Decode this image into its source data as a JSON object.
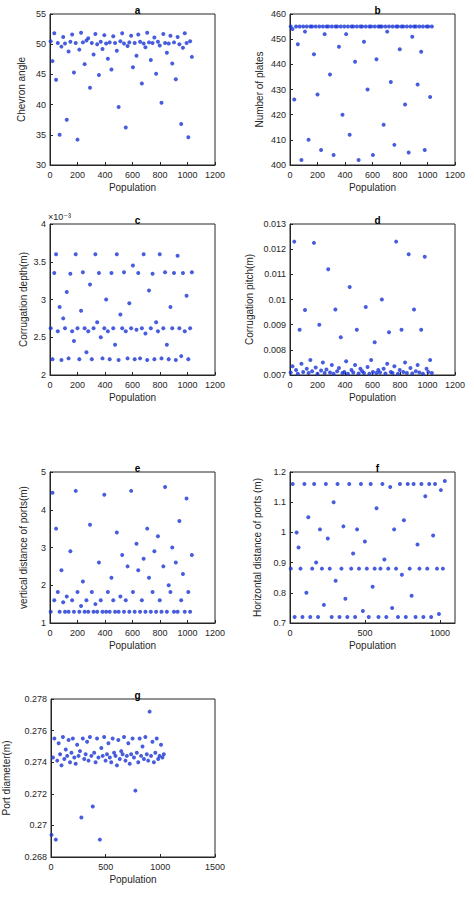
{
  "chart_data": [
    {
      "type": "scatter",
      "title": "a",
      "x_label": "Population",
      "y_label": "Chevron angle",
      "color": "#1a35d6",
      "marker": "dot",
      "grid": false,
      "xlim": [
        0,
        1200
      ],
      "xticks": [
        0,
        200,
        400,
        600,
        800,
        1000,
        1200
      ],
      "ylim": [
        30,
        55
      ],
      "yticks": [
        30,
        35,
        40,
        45,
        50,
        55
      ],
      "x": [
        5,
        18,
        31,
        44,
        57,
        70,
        83,
        96,
        109,
        122,
        135,
        148,
        161,
        174,
        187,
        200,
        213,
        226,
        239,
        252,
        265,
        278,
        291,
        304,
        317,
        330,
        343,
        356,
        369,
        382,
        395,
        408,
        421,
        434,
        447,
        460,
        473,
        486,
        499,
        512,
        525,
        538,
        551,
        564,
        577,
        590,
        603,
        616,
        629,
        642,
        655,
        668,
        681,
        694,
        707,
        720,
        733,
        746,
        759,
        772,
        785,
        798,
        811,
        824,
        837,
        850,
        863,
        876,
        889,
        902,
        915,
        928,
        941,
        954,
        967,
        980,
        993,
        1006,
        1019,
        1032
      ],
      "values": [
        50.5,
        47.2,
        51.8,
        44.1,
        50.2,
        35.0,
        49.6,
        51.2,
        50.1,
        37.5,
        48.8,
        50.4,
        51.6,
        45.3,
        50.2,
        34.2,
        49.1,
        51.9,
        50.3,
        46.7,
        50.6,
        51.0,
        42.8,
        50.2,
        48.3,
        51.7,
        50.0,
        44.9,
        50.4,
        49.2,
        51.5,
        50.1,
        47.6,
        50.3,
        45.8,
        51.3,
        50.2,
        48.9,
        39.6,
        50.5,
        51.8,
        50.1,
        36.2,
        49.7,
        50.3,
        51.4,
        46.2,
        50.2,
        48.1,
        51.6,
        50.4,
        43.5,
        50.1,
        49.5,
        51.9,
        50.3,
        47.4,
        50.2,
        51.1,
        45.1,
        50.4,
        49.8,
        40.3,
        51.7,
        50.2,
        48.6,
        50.1,
        51.4,
        46.8,
        50.3,
        44.2,
        51.2,
        50.0,
        36.8,
        49.4,
        51.8,
        50.2,
        34.6,
        50.5,
        47.9
      ]
    },
    {
      "type": "scatter",
      "title": "b",
      "x_label": "Population",
      "y_label": "Number of plates",
      "color": "#1a35d6",
      "marker": "dot",
      "grid": false,
      "xlim": [
        0,
        1200
      ],
      "xticks": [
        0,
        200,
        400,
        600,
        800,
        1000,
        1200
      ],
      "ylim": [
        400,
        460
      ],
      "yticks": [
        400,
        410,
        420,
        430,
        440,
        450,
        460
      ],
      "x": [
        5,
        18,
        31,
        44,
        57,
        70,
        83,
        96,
        109,
        122,
        135,
        148,
        161,
        174,
        187,
        200,
        213,
        226,
        239,
        252,
        265,
        278,
        291,
        304,
        317,
        330,
        343,
        356,
        369,
        382,
        395,
        408,
        421,
        434,
        447,
        460,
        473,
        486,
        499,
        512,
        525,
        538,
        551,
        564,
        577,
        590,
        603,
        616,
        629,
        642,
        655,
        668,
        681,
        694,
        707,
        720,
        733,
        746,
        759,
        772,
        785,
        798,
        811,
        824,
        837,
        850,
        863,
        876,
        889,
        902,
        915,
        928,
        941,
        954,
        967,
        980,
        993,
        1006,
        1019,
        1032
      ],
      "values": [
        455,
        454,
        426,
        455,
        448,
        455,
        402,
        455,
        453,
        455,
        410,
        455,
        455,
        444,
        455,
        428,
        455,
        406,
        455,
        452,
        455,
        455,
        436,
        455,
        404,
        455,
        455,
        447,
        455,
        420,
        455,
        452,
        455,
        412,
        455,
        455,
        441,
        455,
        402,
        455,
        455,
        449,
        455,
        430,
        455,
        455,
        404,
        455,
        442,
        455,
        455,
        455,
        416,
        455,
        453,
        455,
        433,
        455,
        408,
        455,
        455,
        446,
        455,
        455,
        424,
        455,
        405,
        455,
        451,
        455,
        455,
        432,
        455,
        445,
        455,
        406,
        455,
        455,
        427,
        455
      ]
    },
    {
      "type": "scatter",
      "title": "c",
      "x_label": "Population",
      "y_label": "Corrugation depth(m)",
      "annotation": "×10⁻³",
      "color": "#1a35d6",
      "marker": "dot",
      "grid": false,
      "xlim": [
        0,
        1200
      ],
      "xticks": [
        0,
        200,
        400,
        600,
        800,
        1000,
        1200
      ],
      "ylim": [
        0.002,
        0.004
      ],
      "yticks": [
        {
          "value": 0.002,
          "label": "2"
        },
        {
          "value": 0.0025,
          "label": "2.5"
        },
        {
          "value": 0.003,
          "label": "3"
        },
        {
          "value": 0.0035,
          "label": "3.5"
        },
        {
          "value": 0.004,
          "label": "4"
        }
      ],
      "x": [
        5,
        18,
        31,
        44,
        57,
        70,
        83,
        96,
        109,
        122,
        135,
        148,
        161,
        174,
        187,
        200,
        213,
        226,
        239,
        252,
        265,
        278,
        291,
        304,
        317,
        330,
        343,
        356,
        369,
        382,
        395,
        408,
        421,
        434,
        447,
        460,
        473,
        486,
        499,
        512,
        525,
        538,
        551,
        564,
        577,
        590,
        603,
        616,
        629,
        642,
        655,
        668,
        681,
        694,
        707,
        720,
        733,
        746,
        759,
        772,
        785,
        798,
        811,
        824,
        837,
        850,
        863,
        876,
        889,
        902,
        915,
        928,
        941,
        954,
        967,
        980,
        993,
        1006,
        1019,
        1032
      ],
      "values": [
        0.00262,
        0.00221,
        0.00335,
        0.0036,
        0.00258,
        0.0029,
        0.0022,
        0.00275,
        0.00262,
        0.0031,
        0.00222,
        0.00334,
        0.00258,
        0.00245,
        0.0036,
        0.00262,
        0.00221,
        0.00285,
        0.00336,
        0.00262,
        0.0023,
        0.00258,
        0.0032,
        0.00221,
        0.00262,
        0.0036,
        0.0027,
        0.00335,
        0.0025,
        0.00222,
        0.00262,
        0.003,
        0.00258,
        0.00221,
        0.00335,
        0.00262,
        0.0024,
        0.0036,
        0.0022,
        0.0028,
        0.00262,
        0.00336,
        0.00258,
        0.00222,
        0.00295,
        0.00262,
        0.00345,
        0.00221,
        0.0026,
        0.00335,
        0.00222,
        0.00262,
        0.0036,
        0.00255,
        0.0022,
        0.00312,
        0.00262,
        0.00334,
        0.00221,
        0.0027,
        0.00258,
        0.0036,
        0.00222,
        0.00262,
        0.00336,
        0.0024,
        0.00221,
        0.0029,
        0.00262,
        0.00335,
        0.0022,
        0.00358,
        0.00262,
        0.00225,
        0.00335,
        0.00258,
        0.00305,
        0.00221,
        0.00262,
        0.00336
      ]
    },
    {
      "type": "scatter",
      "title": "d",
      "x_label": "Population",
      "y_label": "Corrugation pitch(m)",
      "color": "#1a35d6",
      "marker": "dot",
      "grid": false,
      "xlim": [
        0,
        1200
      ],
      "xticks": [
        0,
        200,
        400,
        600,
        800,
        1000,
        1200
      ],
      "ylim": [
        0.007,
        0.013
      ],
      "yticks": [
        0.007,
        0.008,
        0.009,
        0.01,
        0.011,
        0.012,
        0.013
      ],
      "x": [
        5,
        18,
        31,
        44,
        57,
        70,
        83,
        96,
        109,
        122,
        135,
        148,
        161,
        174,
        187,
        200,
        213,
        226,
        239,
        252,
        265,
        278,
        291,
        304,
        317,
        330,
        343,
        356,
        369,
        382,
        395,
        408,
        421,
        434,
        447,
        460,
        473,
        486,
        499,
        512,
        525,
        538,
        551,
        564,
        577,
        590,
        603,
        616,
        629,
        642,
        655,
        668,
        681,
        694,
        707,
        720,
        733,
        746,
        759,
        772,
        785,
        798,
        811,
        824,
        837,
        850,
        863,
        876,
        889,
        902,
        915,
        928,
        941,
        954,
        967,
        980,
        993,
        1006,
        1019,
        1032
      ],
      "values": [
        0.0071,
        0.00735,
        0.0123,
        0.0072,
        0.00705,
        0.0088,
        0.00745,
        0.00712,
        0.00958,
        0.00725,
        0.00708,
        0.0076,
        0.00715,
        0.01225,
        0.0073,
        0.00705,
        0.009,
        0.00718,
        0.0075,
        0.00708,
        0.00722,
        0.0112,
        0.0071,
        0.0074,
        0.00705,
        0.0096,
        0.00715,
        0.00728,
        0.0085,
        0.00708,
        0.00712,
        0.00755,
        0.00705,
        0.0105,
        0.0072,
        0.0071,
        0.0074,
        0.0088,
        0.00706,
        0.00725,
        0.00715,
        0.00708,
        0.0097,
        0.00732,
        0.00705,
        0.0076,
        0.00712,
        0.0083,
        0.00708,
        0.0072,
        0.0071,
        0.01,
        0.00725,
        0.00706,
        0.00745,
        0.0087,
        0.00712,
        0.00708,
        0.00735,
        0.0123,
        0.00705,
        0.0072,
        0.0088,
        0.00712,
        0.0075,
        0.00708,
        0.0118,
        0.00728,
        0.00706,
        0.0096,
        0.00715,
        0.0074,
        0.0071,
        0.0088,
        0.00705,
        0.0117,
        0.00725,
        0.00712,
        0.0076,
        0.00708
      ]
    },
    {
      "type": "scatter",
      "title": "e",
      "x_label": "Population",
      "y_label": "vertical distance of ports(m)",
      "color": "#1a35d6",
      "marker": "dot",
      "grid": false,
      "xlim": [
        0,
        1200
      ],
      "xticks": [
        0,
        200,
        400,
        600,
        800,
        1000,
        1200
      ],
      "ylim": [
        1,
        5
      ],
      "yticks": [
        1,
        2,
        3,
        4,
        5
      ],
      "x": [
        5,
        18,
        31,
        44,
        57,
        70,
        83,
        96,
        109,
        122,
        135,
        148,
        161,
        174,
        187,
        200,
        213,
        226,
        239,
        252,
        265,
        278,
        291,
        304,
        317,
        330,
        343,
        356,
        369,
        382,
        395,
        408,
        421,
        434,
        447,
        460,
        473,
        486,
        499,
        512,
        525,
        538,
        551,
        564,
        577,
        590,
        603,
        616,
        629,
        642,
        655,
        668,
        681,
        694,
        707,
        720,
        733,
        746,
        759,
        772,
        785,
        798,
        811,
        824,
        837,
        850,
        863,
        876,
        889,
        902,
        915,
        928,
        941,
        954,
        967,
        980,
        993,
        1006,
        1019,
        1032
      ],
      "values": [
        1.3,
        4.45,
        1.6,
        3.5,
        1.82,
        1.3,
        2.4,
        1.55,
        1.3,
        1.7,
        1.3,
        2.9,
        1.6,
        1.3,
        4.5,
        1.82,
        1.3,
        1.45,
        2.1,
        1.3,
        1.6,
        1.3,
        3.6,
        1.82,
        1.3,
        1.5,
        1.3,
        2.6,
        1.6,
        1.3,
        4.4,
        1.3,
        1.82,
        1.3,
        2.2,
        1.6,
        1.3,
        3.4,
        1.3,
        1.7,
        2.8,
        1.3,
        1.6,
        2.5,
        1.3,
        4.5,
        1.82,
        1.3,
        3.1,
        2.4,
        1.3,
        1.6,
        2.7,
        1.3,
        3.5,
        2.2,
        1.3,
        1.82,
        2.9,
        1.3,
        3.3,
        1.6,
        1.3,
        2.5,
        4.6,
        1.3,
        2.0,
        1.82,
        3.0,
        1.3,
        2.6,
        1.3,
        3.7,
        1.6,
        2.3,
        1.3,
        4.3,
        1.82,
        1.3,
        2.8
      ]
    },
    {
      "type": "scatter",
      "title": "f",
      "x_label": "Population",
      "y_label": "Horizontal distance of ports (m)",
      "color": "#1a35d6",
      "marker": "dot",
      "grid": false,
      "xlim": [
        0,
        1100
      ],
      "xticks": [
        0,
        500,
        1000
      ],
      "ylim": [
        0.7,
        1.2
      ],
      "yticks": [
        0.7,
        0.8,
        0.9,
        1,
        1.1,
        1.2
      ],
      "x": [
        5,
        18,
        31,
        44,
        57,
        70,
        83,
        96,
        109,
        122,
        135,
        148,
        161,
        174,
        187,
        200,
        213,
        226,
        239,
        252,
        265,
        278,
        291,
        304,
        317,
        330,
        343,
        356,
        369,
        382,
        395,
        408,
        421,
        434,
        447,
        460,
        473,
        486,
        499,
        512,
        525,
        538,
        551,
        564,
        577,
        590,
        603,
        616,
        629,
        642,
        655,
        668,
        681,
        694,
        707,
        720,
        733,
        746,
        759,
        772,
        785,
        798,
        811,
        824,
        837,
        850,
        863,
        876,
        889,
        902,
        915,
        928,
        941,
        954,
        967,
        980,
        993,
        1006,
        1019,
        1032
      ],
      "values": [
        0.88,
        1.16,
        0.72,
        1.0,
        0.95,
        0.88,
        0.72,
        1.16,
        0.8,
        1.05,
        0.72,
        0.88,
        1.16,
        0.9,
        0.72,
        1.01,
        0.88,
        0.76,
        1.16,
        0.98,
        0.88,
        0.72,
        1.1,
        0.84,
        1.16,
        0.72,
        0.88,
        1.02,
        0.78,
        0.72,
        1.16,
        0.88,
        0.93,
        0.72,
        1.01,
        0.88,
        1.16,
        0.74,
        0.97,
        0.88,
        0.72,
        1.16,
        0.82,
        0.88,
        1.08,
        0.72,
        0.88,
        1.16,
        0.91,
        0.72,
        0.88,
        1.15,
        0.75,
        1.01,
        0.88,
        0.72,
        1.16,
        0.86,
        1.04,
        0.72,
        1.16,
        0.88,
        0.79,
        1.16,
        0.72,
        0.96,
        0.88,
        1.16,
        0.72,
        1.12,
        0.88,
        1.16,
        0.72,
        0.99,
        1.16,
        0.88,
        0.73,
        1.14,
        0.88,
        1.17
      ]
    },
    {
      "type": "scatter",
      "title": "g",
      "x_label": "Population",
      "y_label": "Port diameter(m)",
      "color": "#1a35d6",
      "marker": "dot",
      "grid": false,
      "xlim": [
        0,
        1500
      ],
      "xticks": [
        0,
        500,
        1000,
        1500
      ],
      "ylim": [
        0.268,
        0.278
      ],
      "yticks": [
        0.268,
        0.27,
        0.272,
        0.274,
        0.276,
        0.278
      ],
      "x": [
        5,
        18,
        31,
        44,
        57,
        70,
        83,
        96,
        109,
        122,
        135,
        148,
        161,
        174,
        187,
        200,
        213,
        226,
        239,
        252,
        265,
        278,
        291,
        304,
        317,
        330,
        343,
        356,
        369,
        382,
        395,
        408,
        421,
        434,
        447,
        460,
        473,
        486,
        499,
        512,
        525,
        538,
        551,
        564,
        577,
        590,
        603,
        616,
        629,
        642,
        655,
        668,
        681,
        694,
        707,
        720,
        733,
        746,
        759,
        772,
        785,
        798,
        811,
        824,
        837,
        850,
        863,
        876,
        889,
        902,
        915,
        928,
        941,
        954,
        967,
        980,
        993,
        1006,
        1019,
        1032
      ],
      "values": [
        0.2694,
        0.2743,
        0.2755,
        0.2691,
        0.2741,
        0.2752,
        0.2745,
        0.2738,
        0.2756,
        0.2742,
        0.2748,
        0.2744,
        0.2754,
        0.274,
        0.2746,
        0.2755,
        0.2743,
        0.2739,
        0.2751,
        0.2744,
        0.2747,
        0.2705,
        0.2755,
        0.2742,
        0.2745,
        0.2753,
        0.2741,
        0.2756,
        0.2744,
        0.2712,
        0.2746,
        0.274,
        0.2755,
        0.2743,
        0.2691,
        0.2749,
        0.2744,
        0.2756,
        0.2741,
        0.2745,
        0.2752,
        0.2743,
        0.274,
        0.2755,
        0.2746,
        0.2744,
        0.2738,
        0.2754,
        0.2742,
        0.2747,
        0.2745,
        0.2756,
        0.2741,
        0.2744,
        0.2752,
        0.2739,
        0.2745,
        0.2755,
        0.2743,
        0.2722,
        0.2746,
        0.274,
        0.2755,
        0.2744,
        0.275,
        0.2742,
        0.2756,
        0.2745,
        0.2741,
        0.2772,
        0.2744,
        0.2753,
        0.274,
        0.2746,
        0.2755,
        0.2742,
        0.2744,
        0.2751,
        0.2743,
        0.2745
      ]
    }
  ]
}
